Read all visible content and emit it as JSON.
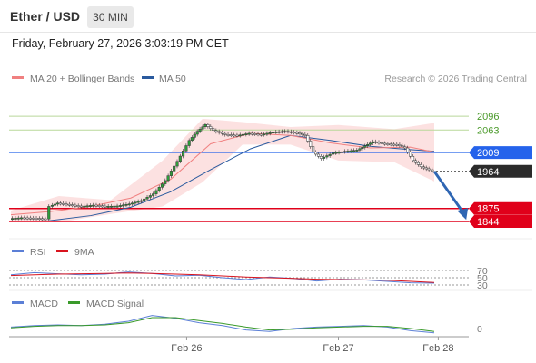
{
  "header": {
    "symbol": "Ether / USD",
    "timeframe": "30 MIN"
  },
  "datetime": "Friday, February 27, 2026 3:03:19 PM CET",
  "legend": {
    "ma20": "MA 20 + Bollinger Bands",
    "ma50": "MA 50",
    "source": "Research © 2026 Trading Central"
  },
  "colors": {
    "ma20": "#f08080",
    "ma50": "#2a5a9e",
    "bands": "#f9c9c9",
    "candle": "#2e9e3a",
    "support": "#e0001a",
    "resistance": "#b9d89a",
    "pivot": "#2563eb",
    "last": "#2b2b2b",
    "arrow": "#2f66b3"
  },
  "levels": [
    {
      "label": "2096",
      "value": 2096,
      "kind": "resistance"
    },
    {
      "label": "2063",
      "value": 2063,
      "kind": "resistance"
    },
    {
      "label": "2009",
      "value": 2009,
      "kind": "pivot"
    },
    {
      "label": "1964",
      "value": 1964,
      "kind": "last"
    },
    {
      "label": "1875",
      "value": 1875,
      "kind": "support"
    },
    {
      "label": "1844",
      "value": 1844,
      "kind": "support"
    }
  ],
  "rsi": {
    "label": "RSI",
    "ma_label": "9MA",
    "ticks": [
      "70",
      "50",
      "30"
    ],
    "rsi_color": "#5b7fd6",
    "ma_color": "#d9141e"
  },
  "macd": {
    "label": "MACD",
    "signal_label": "MACD Signal",
    "ticks": [
      "0"
    ],
    "macd_color": "#5b7fd6",
    "signal_color": "#3a9a2a"
  },
  "x_axis": {
    "ticks": [
      "Feb 26",
      "Feb 27",
      "Feb 28"
    ]
  },
  "chart_data": [
    {
      "type": "candlestick",
      "x_range": [
        0,
        100
      ],
      "y_range": [
        1840,
        2105
      ],
      "close": [
        {
          "x": 0,
          "y": 1851
        },
        {
          "x": 3,
          "y": 1853
        },
        {
          "x": 6,
          "y": 1852
        },
        {
          "x": 9,
          "y": 1850
        },
        {
          "x": 10,
          "y": 1880
        },
        {
          "x": 12,
          "y": 1888
        },
        {
          "x": 15,
          "y": 1884
        },
        {
          "x": 18,
          "y": 1880
        },
        {
          "x": 21,
          "y": 1883
        },
        {
          "x": 24,
          "y": 1880
        },
        {
          "x": 27,
          "y": 1881
        },
        {
          "x": 30,
          "y": 1886
        },
        {
          "x": 33,
          "y": 1894
        },
        {
          "x": 36,
          "y": 1910
        },
        {
          "x": 39,
          "y": 1942
        },
        {
          "x": 42,
          "y": 1988
        },
        {
          "x": 45,
          "y": 2038
        },
        {
          "x": 47,
          "y": 2060
        },
        {
          "x": 49,
          "y": 2076
        },
        {
          "x": 51,
          "y": 2062
        },
        {
          "x": 54,
          "y": 2052
        },
        {
          "x": 57,
          "y": 2050
        },
        {
          "x": 60,
          "y": 2055
        },
        {
          "x": 63,
          "y": 2052
        },
        {
          "x": 66,
          "y": 2058
        },
        {
          "x": 69,
          "y": 2060
        },
        {
          "x": 72,
          "y": 2056
        },
        {
          "x": 74,
          "y": 2050
        },
        {
          "x": 76,
          "y": 2010
        },
        {
          "x": 78,
          "y": 1995
        },
        {
          "x": 81,
          "y": 2008
        },
        {
          "x": 84,
          "y": 2012
        },
        {
          "x": 87,
          "y": 2015
        },
        {
          "x": 89,
          "y": 2025
        },
        {
          "x": 91,
          "y": 2035
        },
        {
          "x": 94,
          "y": 2030
        },
        {
          "x": 97,
          "y": 2028
        },
        {
          "x": 99,
          "y": 2020
        },
        {
          "x": 101,
          "y": 1990
        },
        {
          "x": 103,
          "y": 1975
        },
        {
          "x": 105,
          "y": 1968
        },
        {
          "x": 106,
          "y": 1964
        }
      ],
      "ma20": [
        {
          "x": 0,
          "y": 1860
        },
        {
          "x": 10,
          "y": 1868
        },
        {
          "x": 20,
          "y": 1880
        },
        {
          "x": 30,
          "y": 1900
        },
        {
          "x": 40,
          "y": 1945
        },
        {
          "x": 50,
          "y": 2030
        },
        {
          "x": 60,
          "y": 2055
        },
        {
          "x": 70,
          "y": 2050
        },
        {
          "x": 80,
          "y": 2032
        },
        {
          "x": 90,
          "y": 2020
        },
        {
          "x": 100,
          "y": 2022
        },
        {
          "x": 106,
          "y": 2010
        }
      ],
      "ma50": [
        {
          "x": 9,
          "y": 1845
        },
        {
          "x": 20,
          "y": 1858
        },
        {
          "x": 30,
          "y": 1878
        },
        {
          "x": 40,
          "y": 1915
        },
        {
          "x": 50,
          "y": 1968
        },
        {
          "x": 60,
          "y": 2018
        },
        {
          "x": 70,
          "y": 2050
        },
        {
          "x": 80,
          "y": 2038
        },
        {
          "x": 90,
          "y": 2024
        },
        {
          "x": 100,
          "y": 2016
        },
        {
          "x": 106,
          "y": 2012
        }
      ],
      "bb_upper": [
        {
          "x": 0,
          "y": 1870
        },
        {
          "x": 12,
          "y": 1905
        },
        {
          "x": 25,
          "y": 1895
        },
        {
          "x": 38,
          "y": 1990
        },
        {
          "x": 48,
          "y": 2090
        },
        {
          "x": 58,
          "y": 2082
        },
        {
          "x": 70,
          "y": 2070
        },
        {
          "x": 82,
          "y": 2075
        },
        {
          "x": 96,
          "y": 2065
        },
        {
          "x": 106,
          "y": 2080
        }
      ],
      "bb_lower": [
        {
          "x": 0,
          "y": 1845
        },
        {
          "x": 12,
          "y": 1842
        },
        {
          "x": 25,
          "y": 1862
        },
        {
          "x": 38,
          "y": 1880
        },
        {
          "x": 48,
          "y": 1938
        },
        {
          "x": 58,
          "y": 2028
        },
        {
          "x": 70,
          "y": 2028
        },
        {
          "x": 82,
          "y": 1990
        },
        {
          "x": 96,
          "y": 1986
        },
        {
          "x": 106,
          "y": 1940
        }
      ],
      "levels": [
        2096,
        2063,
        2009,
        1964,
        1875,
        1844
      ],
      "projection": [
        {
          "x": 106,
          "y": 1964
        },
        {
          "x": 114,
          "y": 1848
        }
      ],
      "x_ticks": [
        {
          "label": "Feb 26",
          "x": 44
        },
        {
          "label": "Feb 27",
          "x": 82
        },
        {
          "label": "Feb 28",
          "x": 107
        }
      ]
    },
    {
      "type": "line",
      "title": "RSI",
      "y_range": [
        30,
        70
      ],
      "series": [
        {
          "name": "RSI",
          "values": [
            58,
            64,
            61,
            58,
            60,
            66,
            62,
            55,
            57,
            50,
            45,
            52,
            48,
            41,
            46,
            44,
            40,
            36,
            35
          ]
        },
        {
          "name": "9MA",
          "values": [
            56,
            58,
            60,
            61,
            62,
            63,
            62,
            60,
            58,
            55,
            52,
            50,
            48,
            46,
            45,
            44,
            43,
            40,
            37
          ]
        }
      ]
    },
    {
      "type": "line",
      "title": "MACD",
      "series": [
        {
          "name": "MACD",
          "values": [
            2,
            4,
            5,
            4,
            6,
            10,
            18,
            14,
            8,
            4,
            -2,
            -4,
            0,
            2,
            3,
            4,
            2,
            -3,
            -6
          ]
        },
        {
          "name": "MACD Signal",
          "values": [
            1,
            3,
            4,
            4,
            5,
            8,
            15,
            15,
            11,
            7,
            2,
            -2,
            -1,
            1,
            2,
            3,
            3,
            0,
            -4
          ]
        }
      ]
    }
  ]
}
